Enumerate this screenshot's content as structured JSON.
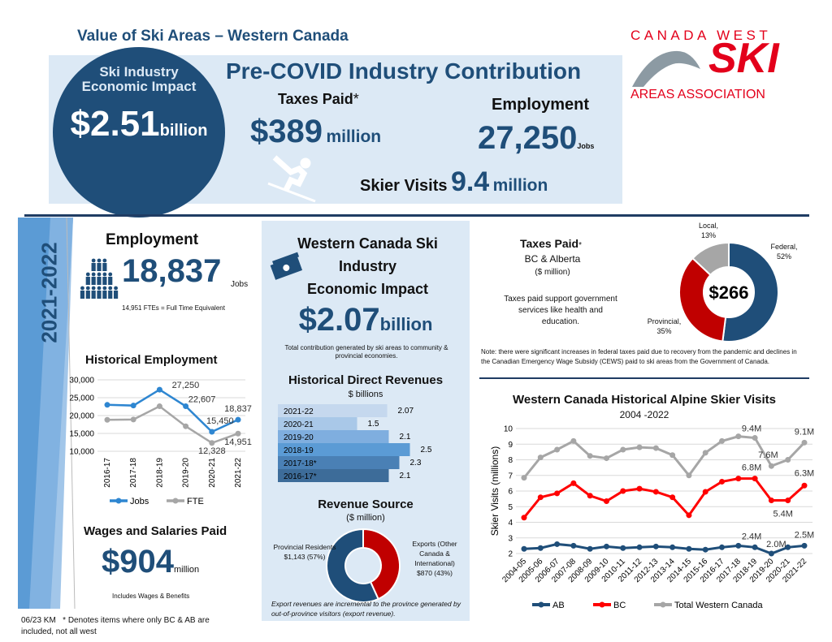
{
  "header": {
    "title": "Value of Ski Areas – Western Canada"
  },
  "logo": {
    "line1": "CANADA WEST",
    "line2": "SKI",
    "line3": "AREAS ASSOCIATION",
    "color": "#e3001b"
  },
  "precovid": {
    "circle_title": "Ski Industry Economic Impact",
    "circle_value": "$2.51",
    "circle_unit": "billion",
    "heading": "Pre-COVID Industry Contribution",
    "taxes_label": "Taxes Paid",
    "taxes_star": "*",
    "taxes_value": "$389",
    "taxes_unit": "million",
    "employment_label": "Employment",
    "employment_value": "27,250",
    "employment_unit": "Jobs",
    "visits_label": "Skier Visits",
    "visits_value": "9.4",
    "visits_unit": "million",
    "skier_icon": "skier-icon"
  },
  "sidebar_year": "2021-2022",
  "employment": {
    "title": "Employment",
    "value": "18,837",
    "unit": "Jobs",
    "note": "14,951 FTEs = Full Time Equivalent",
    "icon": "people-icon"
  },
  "wages": {
    "title": "Wages and Salaries Paid",
    "value": "$904",
    "unit": "million",
    "note": "Includes Wages & Benefits"
  },
  "footer": {
    "code": "06/23 KM",
    "note": "* Denotes items where only BC & AB are included, not all west"
  },
  "impact": {
    "title_l1": "Western Canada Ski",
    "title_l2": "Industry",
    "title_l3": "Economic Impact",
    "value": "$2.07",
    "unit": "billion",
    "note": "Total contribution generated by ski areas to community & provincial economies.",
    "icon": "money-icon"
  },
  "taxes": {
    "title": "Taxes Paid",
    "star": "*",
    "sub1": "BC & Alberta",
    "sub2": "($ million)",
    "desc": "Taxes paid support government services like health and education.",
    "note": "Note: there were significant increases in federal taxes paid due to recovery from the pandemic and declines in the Canadian Emergency Wage Subsidy (CEWS) paid to ski areas from the Government of Canada."
  },
  "revenue_note": "Export revenues are incremental to the province generated by out-of-province visitors (export revenue).",
  "colors": {
    "navy": "#1f4e79",
    "red": "#c00000",
    "gray": "#a6a6a6",
    "light_blue": "#dce9f5",
    "jobs": "#2e86d1",
    "bc": "#ff0000",
    "ab": "#1f4e79"
  },
  "chart_data": [
    {
      "id": "employment",
      "type": "line",
      "title": "Historical Employment",
      "categories": [
        "2016-17",
        "2017-18",
        "2018-19",
        "2019-20",
        "2020-21",
        "2021-22"
      ],
      "yticks": [
        "30,000",
        "25,000",
        "20,000",
        "15,000",
        "10,000"
      ],
      "ylim": [
        10000,
        30000
      ],
      "grid": true,
      "legend": "bottom",
      "series": [
        {
          "name": "Jobs",
          "color": "#2e86d1",
          "values": [
            23000,
            22800,
            27250,
            22607,
            15450,
            18837
          ],
          "labels": [
            "",
            "",
            "27,250",
            "22,607",
            "15,450",
            "18,837"
          ]
        },
        {
          "name": "FTE",
          "color": "#a6a6a6",
          "values": [
            18800,
            18900,
            22600,
            17000,
            12328,
            14951
          ],
          "labels": [
            "",
            "",
            "",
            "",
            "12,328",
            "14,951"
          ]
        }
      ]
    },
    {
      "id": "revenues",
      "type": "bar",
      "title": "Historical Direct Revenues",
      "subtitle": "$ billions",
      "categories": [
        "2021-22",
        "2020-21",
        "2019-20",
        "2018-19",
        "2017-18*",
        "2016-17*"
      ],
      "values": [
        2.07,
        1.5,
        2.1,
        2.5,
        2.3,
        2.1
      ],
      "labels": [
        "2.07",
        "1.5",
        "2.1",
        "2.5",
        "2.3",
        "2.1"
      ],
      "colors": [
        "#c5d8ee",
        "#a9c8e8",
        "#7faedf",
        "#5b9bd5",
        "#4a80b5",
        "#3d6c99"
      ]
    },
    {
      "id": "revenue_source",
      "type": "pie",
      "title": "Revenue Source",
      "subtitle": "($ million)",
      "slices": [
        {
          "label": "Exports (Other Canada & International)",
          "value": 870,
          "text": "$870 (43%)",
          "color": "#c00000"
        },
        {
          "label": "Provincial Residents",
          "value": 1143,
          "text": "$1,143  (57%)",
          "color": "#1f4e79"
        }
      ]
    },
    {
      "id": "taxes",
      "type": "pie",
      "center_label": "$266",
      "slices": [
        {
          "label": "Federal,",
          "pct": "52%",
          "value": 52,
          "color": "#1f4e79"
        },
        {
          "label": "Provincial,",
          "pct": "35%",
          "value": 35,
          "color": "#c00000"
        },
        {
          "label": "Local,",
          "pct": "13%",
          "value": 13,
          "color": "#a6a6a6"
        }
      ]
    },
    {
      "id": "skier_visits",
      "type": "line",
      "title": "Western Canada Historical Alpine Skier Visits",
      "subtitle": "2004 -2022",
      "ylabel": "Skier Visits  (millions)",
      "ylim": [
        2,
        10
      ],
      "yticks": [
        "10",
        "9",
        "8",
        "7",
        "6",
        "5",
        "4",
        "3",
        "2"
      ],
      "grid": true,
      "legend": "bottom",
      "categories": [
        "2004-05",
        "2005-06",
        "2006-07",
        "2007-08",
        "2008-09",
        "2009-10",
        "2010-11",
        "2011-12",
        "2012-13",
        "2013-14",
        "2014-15",
        "2015-16",
        "2016-17",
        "2017-18",
        "2018-19",
        "2019-20",
        "2020-21",
        "2021-22"
      ],
      "series": [
        {
          "name": "AB",
          "color": "#1f4e79",
          "values": [
            2.3,
            2.35,
            2.6,
            2.5,
            2.3,
            2.45,
            2.35,
            2.4,
            2.45,
            2.4,
            2.3,
            2.25,
            2.4,
            2.5,
            2.4,
            2.0,
            2.4,
            2.5
          ],
          "labels": {
            "14": "2.4M",
            "15": "2.0M",
            "17": "2.5M"
          }
        },
        {
          "name": "BC",
          "color": "#ff0000",
          "values": [
            4.3,
            5.6,
            5.85,
            6.5,
            5.7,
            5.35,
            6.0,
            6.15,
            5.95,
            5.6,
            4.45,
            5.95,
            6.6,
            6.8,
            6.8,
            5.4,
            5.4,
            6.35
          ],
          "labels": {
            "14": "6.8M",
            "16": "5.4M",
            "17": "6.3M"
          }
        },
        {
          "name": "Total Western Canada",
          "color": "#a6a6a6",
          "values": [
            6.85,
            8.15,
            8.65,
            9.2,
            8.25,
            8.1,
            8.65,
            8.8,
            8.75,
            8.3,
            7.0,
            8.45,
            9.2,
            9.5,
            9.4,
            7.6,
            8.0,
            9.1
          ],
          "labels": {
            "14": "9.4M",
            "15": "7.6M",
            "17": "9.1M"
          }
        }
      ]
    }
  ]
}
